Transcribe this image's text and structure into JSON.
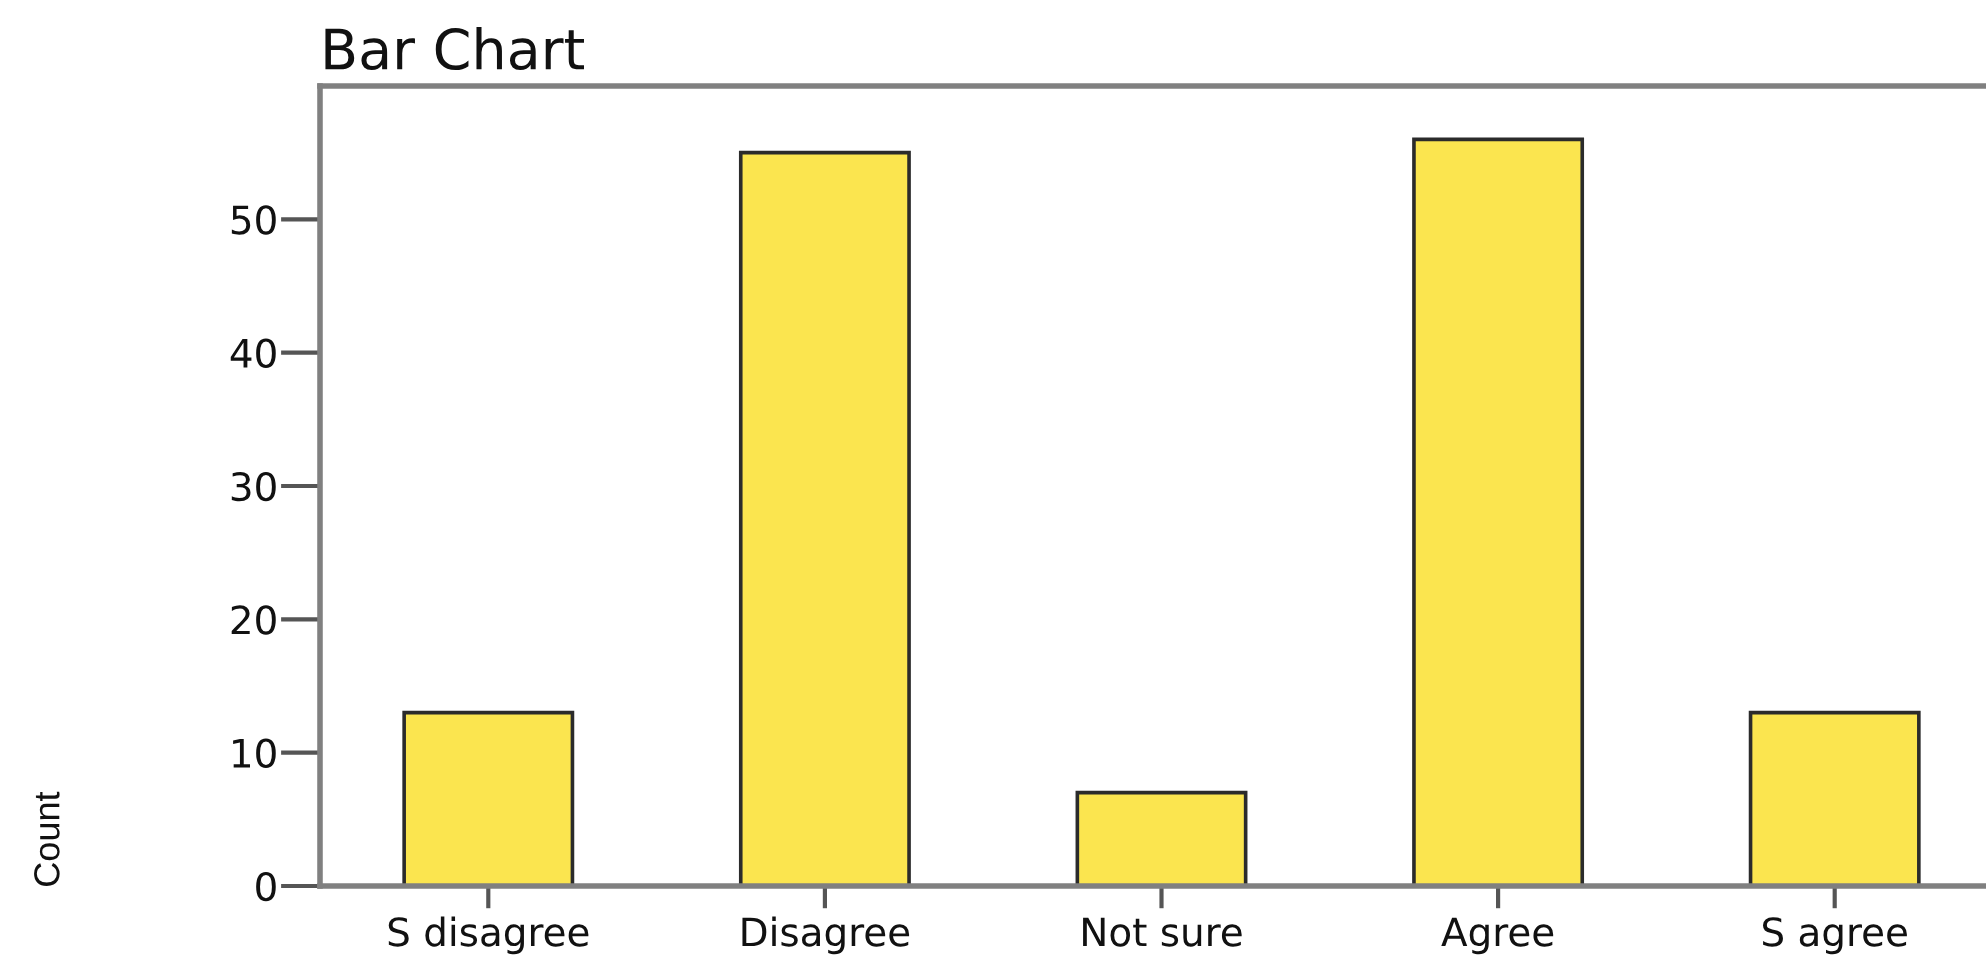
{
  "chart_data": {
    "type": "bar",
    "title": "Bar Chart",
    "ylabel": "Count",
    "categories": [
      "S disagree",
      "Disagree",
      "Not sure",
      "Agree",
      "S agree"
    ],
    "values": [
      13,
      55,
      7,
      56,
      13
    ],
    "color": "#fbe54f",
    "ylim": [
      0,
      60
    ],
    "yticks": [
      0,
      10,
      20,
      30,
      40,
      50
    ],
    "grid": false
  }
}
